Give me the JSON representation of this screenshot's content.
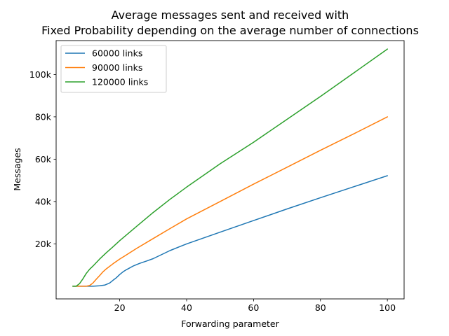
{
  "chart_data": {
    "type": "line",
    "title_lines": [
      "Average messages sent and received with",
      "Fixed Probability depending on the average number of connections"
    ],
    "xlabel": "Forwarding parameter",
    "ylabel": "Messages",
    "xlim": [
      1,
      105
    ],
    "ylim": [
      -6000,
      116000
    ],
    "x_ticks": [
      20,
      40,
      60,
      80,
      100
    ],
    "x_tick_labels": [
      "20",
      "40",
      "60",
      "80",
      "100"
    ],
    "y_ticks": [
      20000,
      40000,
      60000,
      80000,
      100000
    ],
    "y_tick_labels": [
      "20k",
      "40k",
      "60k",
      "80k",
      "100k"
    ],
    "grid": false,
    "legend_position": "top-left",
    "series": [
      {
        "name": "60000 links",
        "color": "#1f77b4",
        "x": [
          6,
          8,
          10,
          12,
          14,
          15.5,
          17,
          18,
          19,
          20,
          21,
          22,
          24,
          26,
          28,
          30,
          35,
          40,
          50,
          60,
          70,
          80,
          90,
          100
        ],
        "y": [
          0,
          0,
          0,
          0,
          200,
          500,
          1500,
          2800,
          4000,
          5500,
          6800,
          7800,
          9500,
          10800,
          11900,
          13000,
          16800,
          20000,
          25500,
          31000,
          36500,
          41800,
          47000,
          52200
        ]
      },
      {
        "name": "90000 links",
        "color": "#ff7f0e",
        "x": [
          6,
          8,
          10,
          11,
          12,
          13,
          14,
          15,
          16,
          18,
          20,
          22,
          25,
          30,
          35,
          40,
          50,
          60,
          70,
          80,
          90,
          100
        ],
        "y": [
          0,
          0,
          0,
          300,
          1500,
          3300,
          5000,
          6800,
          8200,
          10600,
          12800,
          14800,
          17800,
          22500,
          27200,
          31800,
          40000,
          48200,
          56200,
          64200,
          72000,
          80000
        ]
      },
      {
        "name": "120000 links",
        "color": "#2ca02c",
        "x": [
          6,
          7,
          8,
          9,
          10,
          11,
          12,
          14,
          16,
          18,
          20,
          25,
          30,
          35,
          40,
          50,
          60,
          70,
          80,
          90,
          100
        ],
        "y": [
          0,
          0,
          1200,
          3500,
          6000,
          8000,
          9500,
          12800,
          15800,
          18600,
          21500,
          28200,
          34800,
          41000,
          46800,
          57800,
          68000,
          78800,
          89600,
          100800,
          112000
        ]
      }
    ]
  }
}
